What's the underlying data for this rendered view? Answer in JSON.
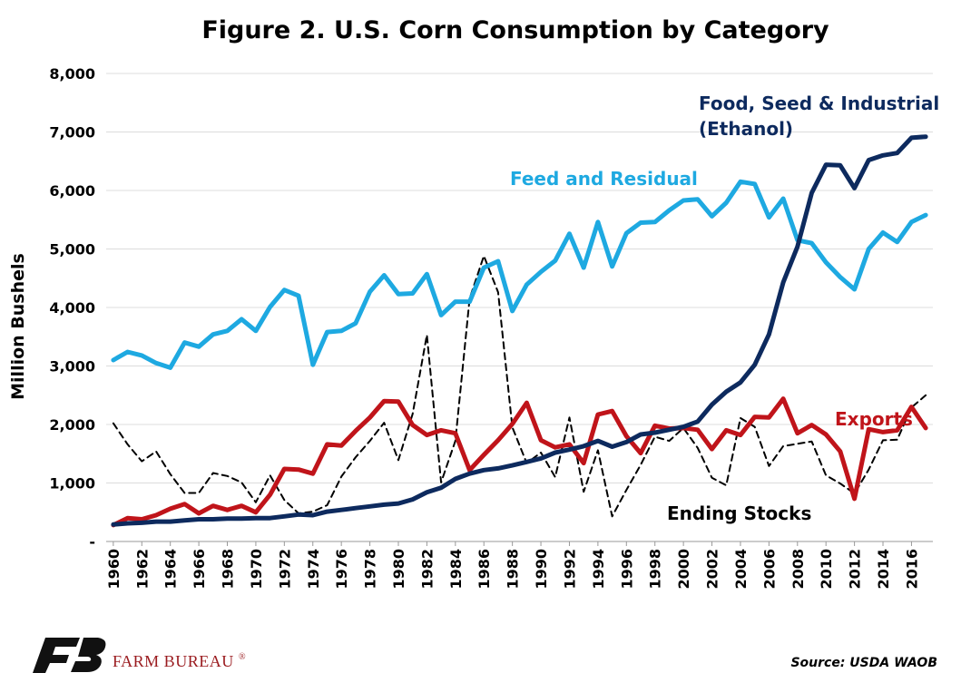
{
  "chart_data": {
    "type": "line",
    "title": "Figure 2. U.S. Corn Consumption by Category",
    "ylabel": "Million Bushels",
    "xlabel": "",
    "ylim": [
      0,
      8000
    ],
    "yticks": [
      0,
      1000,
      2000,
      3000,
      4000,
      5000,
      6000,
      7000,
      8000
    ],
    "ytick_labels": [
      "-",
      "1,000",
      "2,000",
      "3,000",
      "4,000",
      "5,000",
      "6,000",
      "7,000",
      "8,000"
    ],
    "xtick_labels": [
      "1960",
      "1962",
      "1964",
      "1966",
      "1968",
      "1970",
      "1972",
      "1974",
      "1976",
      "1978",
      "1980",
      "1982",
      "1984",
      "1986",
      "1988",
      "1990",
      "1992",
      "1994",
      "1996",
      "1998",
      "2000",
      "2002",
      "2004",
      "2006",
      "2008",
      "2010",
      "2012",
      "2014",
      "2016"
    ],
    "grid": true,
    "x": [
      1960,
      1961,
      1962,
      1963,
      1964,
      1965,
      1966,
      1967,
      1968,
      1969,
      1970,
      1971,
      1972,
      1973,
      1974,
      1975,
      1976,
      1977,
      1978,
      1979,
      1980,
      1981,
      1982,
      1983,
      1984,
      1985,
      1986,
      1987,
      1988,
      1989,
      1990,
      1991,
      1992,
      1993,
      1994,
      1995,
      1996,
      1997,
      1998,
      1999,
      2000,
      2001,
      2002,
      2003,
      2004,
      2005,
      2006,
      2007,
      2008,
      2009,
      2010,
      2011,
      2012,
      2013,
      2014,
      2015,
      2016,
      2017
    ],
    "series": [
      {
        "name": "Feed and Residual",
        "color": "#1ea9e1",
        "style": "solid",
        "values": [
          3100,
          3240,
          3180,
          3050,
          2970,
          3400,
          3330,
          3540,
          3600,
          3800,
          3600,
          4010,
          4300,
          4200,
          3020,
          3580,
          3600,
          3730,
          4270,
          4550,
          4230,
          4240,
          4570,
          3870,
          4100,
          4100,
          4680,
          4790,
          3940,
          4390,
          4610,
          4800,
          5260,
          4680,
          5460,
          4700,
          5270,
          5450,
          5460,
          5660,
          5830,
          5850,
          5560,
          5790,
          6150,
          6110,
          5540,
          5860,
          5150,
          5100,
          4770,
          4520,
          4310,
          5000,
          5280,
          5120,
          5460,
          5580
        ]
      },
      {
        "name": "Food, Seed & Industrial (Ethanol)",
        "color": "#0d2a5e",
        "style": "solid",
        "values": [
          290,
          310,
          320,
          340,
          340,
          360,
          380,
          380,
          390,
          390,
          400,
          400,
          430,
          460,
          450,
          510,
          540,
          570,
          600,
          630,
          650,
          720,
          840,
          920,
          1070,
          1160,
          1220,
          1250,
          1300,
          1360,
          1420,
          1520,
          1570,
          1630,
          1720,
          1620,
          1700,
          1830,
          1860,
          1910,
          1960,
          2050,
          2340,
          2560,
          2720,
          3020,
          3540,
          4430,
          5040,
          5960,
          6440,
          6430,
          6040,
          6520,
          6600,
          6640,
          6900,
          6920
        ]
      },
      {
        "name": "Exports",
        "color": "#c0141a",
        "style": "solid",
        "values": [
          280,
          400,
          380,
          450,
          560,
          640,
          480,
          610,
          540,
          610,
          500,
          800,
          1240,
          1230,
          1160,
          1660,
          1640,
          1890,
          2120,
          2400,
          2390,
          1990,
          1820,
          1900,
          1850,
          1220,
          1480,
          1730,
          2010,
          2370,
          1730,
          1610,
          1660,
          1340,
          2170,
          2230,
          1800,
          1510,
          1980,
          1930,
          1940,
          1910,
          1580,
          1900,
          1820,
          2130,
          2120,
          2440,
          1850,
          1990,
          1830,
          1540,
          730,
          1920,
          1870,
          1900,
          2300,
          1940
        ]
      },
      {
        "name": "Ending Stocks",
        "color": "#000000",
        "style": "dashed",
        "values": [
          2020,
          1660,
          1370,
          1540,
          1150,
          830,
          830,
          1170,
          1120,
          1010,
          670,
          1130,
          710,
          480,
          510,
          620,
          1110,
          1440,
          1720,
          2030,
          1390,
          2180,
          3530,
          1010,
          1720,
          4150,
          4880,
          4260,
          1950,
          1340,
          1520,
          1100,
          2120,
          850,
          1560,
          430,
          880,
          1310,
          1790,
          1720,
          1940,
          1600,
          1090,
          960,
          2110,
          1960,
          1290,
          1630,
          1670,
          1710,
          1130,
          990,
          820,
          1230,
          1730,
          1740,
          2290,
          2500
        ]
      }
    ],
    "annotations": [
      {
        "text": "Food, Seed & Industrial",
        "series": "Food, Seed & Industrial (Ethanol)"
      },
      {
        "text": "(Ethanol)",
        "series": "Food, Seed & Industrial (Ethanol)"
      },
      {
        "text": "Feed and Residual",
        "series": "Feed and Residual"
      },
      {
        "text": "Exports",
        "series": "Exports"
      },
      {
        "text": "Ending Stocks",
        "series": "Ending Stocks"
      }
    ],
    "legend": "inline-labels"
  },
  "footer": {
    "brand": "FARM BUREAU",
    "registered": "®",
    "source": "Source: USDA WAOB"
  },
  "colors": {
    "brand_red": "#9a1b1f",
    "brand_black": "#111111"
  }
}
